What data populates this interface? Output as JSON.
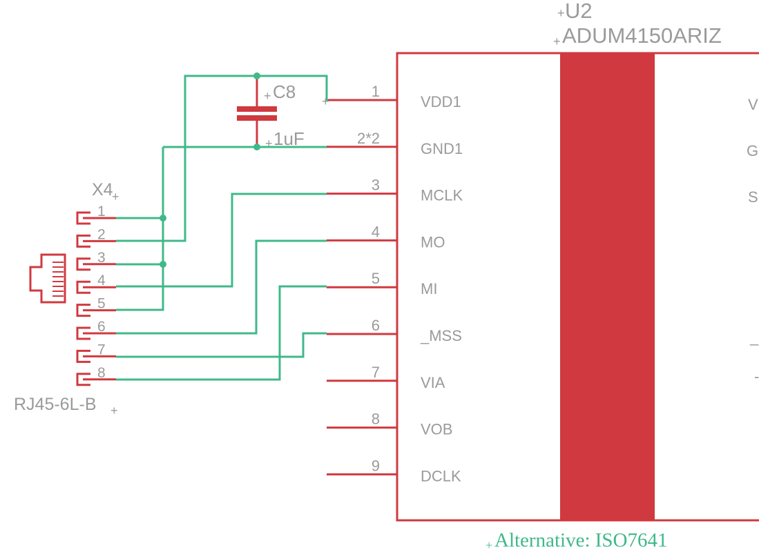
{
  "colors": {
    "symbol": "#d0393f",
    "wire": "#40b88a",
    "text": "#9a9a9a",
    "background": "#ffffff"
  },
  "u2": {
    "name": "U2",
    "value": "ADUM4150ARIZ",
    "note": "Alternative: ISO7641",
    "left_pins": [
      {
        "num": "1",
        "name": "VDD1"
      },
      {
        "num": "2*2",
        "name": "GND1"
      },
      {
        "num": "3",
        "name": "MCLK"
      },
      {
        "num": "4",
        "name": "MO"
      },
      {
        "num": "5",
        "name": "MI"
      },
      {
        "num": "6",
        "name": "_MSS"
      },
      {
        "num": "7",
        "name": "VIA"
      },
      {
        "num": "8",
        "name": "VOB"
      },
      {
        "num": "9",
        "name": "DCLK"
      }
    ],
    "right_pin_fragments": [
      "V",
      "G",
      "S",
      "_",
      "-"
    ]
  },
  "c8": {
    "name": "C8",
    "value": "1uF"
  },
  "x4": {
    "name": "X4",
    "value": "RJ45-6L-B",
    "pins": [
      "1",
      "2",
      "3",
      "4",
      "5",
      "6",
      "7",
      "8"
    ]
  }
}
